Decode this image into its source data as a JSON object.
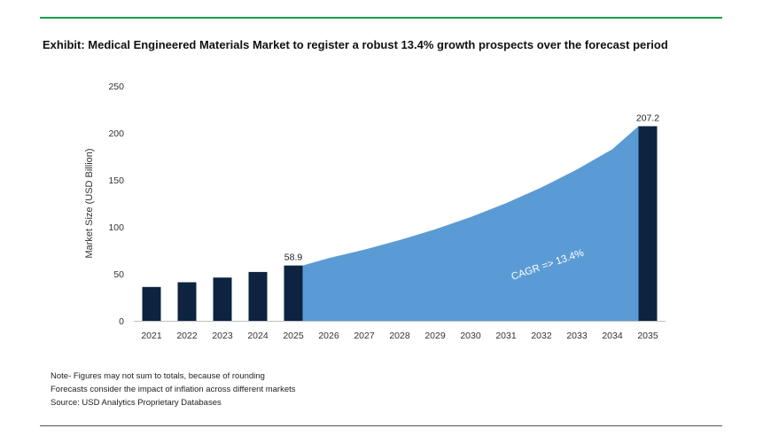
{
  "title": "Exhibit: Medical Engineered Materials Market to register a robust 13.4% growth prospects over the forecast period",
  "notes": [
    "Note- Figures may not sum to totals, because of rounding",
    "Forecasts consider the impact of inflation across different markets",
    "Source: USD Analytics Proprietary Databases"
  ],
  "colors": {
    "bar": "#0d2340",
    "area": "#5b9bd5",
    "rule_top": "#1a9e4a",
    "axis": "#bfbfbf",
    "cagr_text": "#ffffff"
  },
  "chart_data": {
    "type": "bar",
    "ylabel": "Market Size (USD Billion)",
    "xlabel": "",
    "ylim": [
      0,
      250
    ],
    "yticks": [
      0,
      50,
      100,
      150,
      200,
      250
    ],
    "grid": false,
    "categories": [
      "2021",
      "2022",
      "2023",
      "2024",
      "2025",
      "2026",
      "2027",
      "2028",
      "2029",
      "2030",
      "2031",
      "2032",
      "2033",
      "2034",
      "2035"
    ],
    "bars": [
      {
        "x": "2021",
        "value": 36
      },
      {
        "x": "2022",
        "value": 41
      },
      {
        "x": "2023",
        "value": 46
      },
      {
        "x": "2024",
        "value": 52
      },
      {
        "x": "2025",
        "value": 58.9,
        "label": "58.9"
      },
      {
        "x": "2035",
        "value": 207.2,
        "label": "207.2"
      }
    ],
    "forecast_area": {
      "x": [
        "2025",
        "2026",
        "2027",
        "2028",
        "2029",
        "2030",
        "2031",
        "2032",
        "2033",
        "2034",
        "2035"
      ],
      "values": [
        58.9,
        66.8,
        75.7,
        85.9,
        97.4,
        110.4,
        125.2,
        142.0,
        161.0,
        182.6,
        207.2
      ]
    },
    "annotation": "CAGR => 13.4%"
  }
}
